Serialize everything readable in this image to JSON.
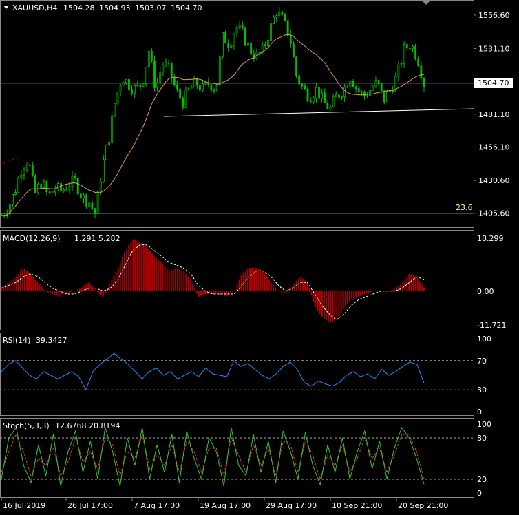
{
  "header": {
    "symbol": "XAUUSD,H4",
    "open": "1504.28",
    "high": "1504.93",
    "low": "1503.07",
    "close": "1504.70"
  },
  "price_axis": {
    "ticks": [
      "1556.60",
      "1531.10",
      "1481.10",
      "1456.10",
      "1430.60",
      "1405.60"
    ],
    "current_price_label": "1504.70"
  },
  "fib_label": "23.6",
  "macd": {
    "title": "MACD(12,26,9)",
    "values": "1.291 5.282",
    "ticks": [
      "18.299",
      "0.00",
      "-11.721"
    ]
  },
  "rsi": {
    "title": "RSI(14)",
    "value": "39.3427",
    "ticks": [
      "100",
      "70",
      "30",
      "0"
    ]
  },
  "stoch": {
    "title": "Stoch(5,3,3)",
    "values": "12.6768 20.8194",
    "ticks": [
      "100",
      "80",
      "20",
      "0"
    ]
  },
  "time_axis": [
    "16 Jul 2019",
    "26 Jul 17:00",
    "7 Aug 17:00",
    "19 Aug 17:00",
    "29 Aug 17:00",
    "10 Sep 21:00",
    "20 Sep 21:00"
  ],
  "colors": {
    "background": "#000000",
    "bull_candle": "#00c000",
    "ma_line": "#e0a040",
    "macd_hist": "#b00000",
    "rsi_line": "#1e90ff",
    "stoch_main": "#32cd32",
    "stoch_signal": "#ff3b3b",
    "hline": "#ffffaa"
  },
  "chart_data": [
    {
      "type": "candlestick",
      "title": "XAUUSD,H4",
      "ylim": [
        1396,
        1566
      ],
      "horizontal_levels": [
        1504.7,
        1456.1,
        1405.6
      ],
      "trendline": [
        [
          1482.5,
          1485.0
        ]
      ],
      "close_path": [
        1404,
        1410,
        1422,
        1440,
        1447,
        1420,
        1430,
        1418,
        1425,
        1422,
        1428,
        1430,
        1418,
        1415,
        1405,
        1440,
        1462,
        1492,
        1510,
        1504,
        1500,
        1505,
        1530,
        1500,
        1520,
        1515,
        1500,
        1490,
        1500,
        1505,
        1500,
        1505,
        1500,
        1540,
        1535,
        1548,
        1542,
        1530,
        1525,
        1530,
        1545,
        1560,
        1552,
        1540,
        1510,
        1500,
        1495,
        1500,
        1490,
        1485,
        1495,
        1500,
        1510,
        1500,
        1495,
        1500,
        1505,
        1492,
        1500,
        1510,
        1530,
        1535,
        1525,
        1504.7
      ]
    },
    {
      "type": "bar",
      "title": "MACD(12,26,9)",
      "ylim": [
        -11.721,
        18.299
      ],
      "values": [
        1,
        3,
        5,
        8,
        6,
        3,
        0,
        -1,
        -2,
        -1,
        0,
        1,
        3,
        0,
        -2,
        3,
        8,
        14,
        18,
        17,
        15,
        12,
        10,
        7,
        8,
        7,
        4,
        -2,
        -1,
        -1,
        -1,
        -2,
        0,
        6,
        8,
        8,
        7,
        3,
        0,
        -1,
        2,
        5,
        3,
        -5,
        -9,
        -11,
        -10,
        -6,
        -3,
        -2,
        -1,
        0,
        0,
        0,
        1,
        3,
        6,
        5,
        1
      ],
      "signal": [
        1,
        2,
        3,
        5,
        6,
        5,
        3,
        1,
        0,
        -1,
        -1,
        0,
        1,
        1,
        0,
        1,
        4,
        9,
        14,
        16,
        16,
        14,
        12,
        10,
        9,
        8,
        6,
        2,
        0,
        -1,
        -1,
        -1,
        -1,
        2,
        5,
        7,
        7,
        5,
        2,
        0,
        1,
        3,
        3,
        -1,
        -5,
        -8,
        -10,
        -8,
        -5,
        -3,
        -2,
        -1,
        0,
        0,
        0,
        1,
        3,
        5,
        4
      ]
    },
    {
      "type": "line",
      "title": "RSI(14)",
      "ylim": [
        0,
        100
      ],
      "levels": [
        70,
        30
      ],
      "values": [
        55,
        65,
        70,
        60,
        50,
        45,
        55,
        50,
        45,
        50,
        55,
        48,
        30,
        55,
        65,
        72,
        80,
        72,
        65,
        55,
        45,
        55,
        60,
        50,
        55,
        45,
        50,
        55,
        48,
        60,
        52,
        50,
        48,
        70,
        62,
        66,
        58,
        50,
        45,
        52,
        62,
        68,
        58,
        40,
        35,
        42,
        38,
        35,
        40,
        50,
        55,
        48,
        52,
        45,
        58,
        50,
        55,
        62,
        68,
        65,
        39.3427
      ]
    },
    {
      "type": "line",
      "title": "Stoch(5,3,3)",
      "ylim": [
        0,
        100
      ],
      "levels": [
        80,
        20
      ],
      "series": [
        {
          "values": [
            20,
            80,
            95,
            40,
            15,
            70,
            25,
            85,
            10,
            60,
            90,
            30,
            75,
            20,
            95,
            60,
            10,
            80,
            40,
            95,
            20,
            70,
            30,
            85,
            15,
            90,
            50,
            20,
            80,
            60,
            10,
            95,
            40,
            25,
            85,
            30,
            75,
            15,
            90,
            60,
            20,
            88,
            40,
            12,
            70,
            30,
            80,
            20,
            60,
            90,
            35,
            75,
            20,
            65,
            95,
            80,
            50,
            12.6768
          ]
        },
        {
          "values": [
            30,
            60,
            85,
            60,
            25,
            50,
            40,
            65,
            25,
            45,
            80,
            45,
            60,
            35,
            80,
            70,
            25,
            60,
            50,
            85,
            35,
            55,
            40,
            70,
            30,
            75,
            60,
            30,
            65,
            65,
            25,
            80,
            55,
            30,
            70,
            40,
            65,
            25,
            75,
            70,
            30,
            75,
            55,
            20,
            55,
            40,
            70,
            30,
            50,
            80,
            50,
            65,
            30,
            55,
            85,
            85,
            60,
            20.8194
          ]
        }
      ]
    }
  ]
}
